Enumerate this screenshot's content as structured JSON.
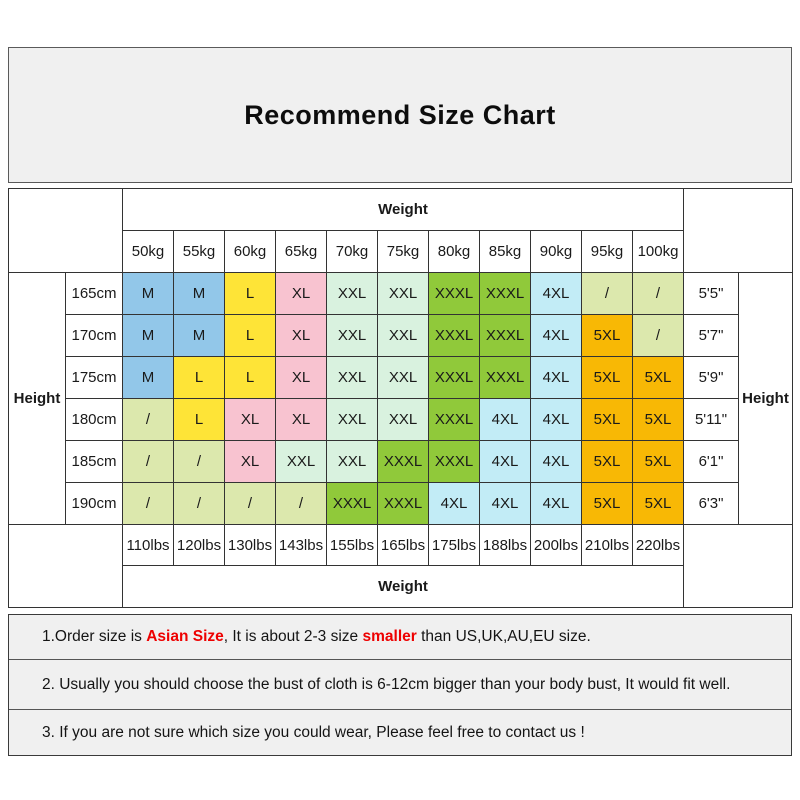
{
  "title": "Recommend Size Chart",
  "table": {
    "weight_top_label": "Weight",
    "weight_bottom_label": "Weight",
    "height_left_label": "Height",
    "height_right_label": "Height",
    "weights_kg": [
      "50kg",
      "55kg",
      "60kg",
      "65kg",
      "70kg",
      "75kg",
      "80kg",
      "85kg",
      "90kg",
      "95kg",
      "100kg"
    ],
    "weights_lbs": [
      "110lbs",
      "120lbs",
      "130lbs",
      "143lbs",
      "155lbs",
      "165lbs",
      "175lbs",
      "188lbs",
      "200lbs",
      "210lbs",
      "220lbs"
    ],
    "rows": [
      {
        "height_cm": "165cm",
        "height_ft": "5'5\"",
        "sizes": [
          "M",
          "M",
          "L",
          "XL",
          "XXL",
          "XXL",
          "XXXL",
          "XXXL",
          "4XL",
          "/",
          "/"
        ]
      },
      {
        "height_cm": "170cm",
        "height_ft": "5'7\"",
        "sizes": [
          "M",
          "M",
          "L",
          "XL",
          "XXL",
          "XXL",
          "XXXL",
          "XXXL",
          "4XL",
          "5XL",
          "/"
        ]
      },
      {
        "height_cm": "175cm",
        "height_ft": "5'9\"",
        "sizes": [
          "M",
          "L",
          "L",
          "XL",
          "XXL",
          "XXL",
          "XXXL",
          "XXXL",
          "4XL",
          "5XL",
          "5XL"
        ]
      },
      {
        "height_cm": "180cm",
        "height_ft": "5'11\"",
        "sizes": [
          "/",
          "L",
          "XL",
          "XL",
          "XXL",
          "XXL",
          "XXXL",
          "4XL",
          "4XL",
          "5XL",
          "5XL"
        ]
      },
      {
        "height_cm": "185cm",
        "height_ft": "6'1\"",
        "sizes": [
          "/",
          "/",
          "XL",
          "XXL",
          "XXL",
          "XXXL",
          "XXXL",
          "4XL",
          "4XL",
          "5XL",
          "5XL"
        ]
      },
      {
        "height_cm": "190cm",
        "height_ft": "6'3\"",
        "sizes": [
          "/",
          "/",
          "/",
          "/",
          "XXXL",
          "XXXL",
          "4XL",
          "4XL",
          "4XL",
          "5XL",
          "5XL"
        ]
      }
    ]
  },
  "size_colors": {
    "M": "#92c7e9",
    "L": "#fee437",
    "XL": "#f8c3d0",
    "XXL": "#d9f2df",
    "XXXL": "#90c93a",
    "4XL": "#c2ecf6",
    "5XL": "#f8b805",
    "/": "#dce8ad"
  },
  "notes": [
    {
      "segments": [
        {
          "text": "1.Order size is "
        },
        {
          "text": "Asian Size",
          "red": true
        },
        {
          "text": ", It is about 2-3 size "
        },
        {
          "text": "smaller",
          "red": true
        },
        {
          "text": " than US,UK,AU,EU size."
        }
      ]
    },
    {
      "segments": [
        {
          "text": "2. Usually you should choose the bust of cloth is 6-12cm bigger than your body bust, It would fit well."
        }
      ]
    },
    {
      "segments": [
        {
          "text": "3. If you are not sure which size you could wear, Please feel free to contact us !"
        }
      ]
    }
  ],
  "colors": {
    "red_text": "#ee0000",
    "panel_bg": "#f0f0f0",
    "grid_border": "#333333"
  }
}
